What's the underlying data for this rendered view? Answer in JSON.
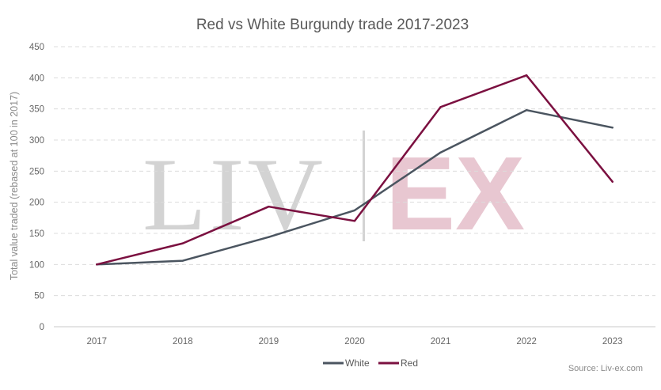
{
  "chart_data": {
    "type": "line",
    "title": "Red vs White Burgundy trade 2017-2023",
    "xlabel": "",
    "ylabel": "Total value traded (rebased at 100 in 2017)",
    "categories": [
      "2017",
      "2018",
      "2019",
      "2020",
      "2021",
      "2022",
      "2023"
    ],
    "ylim": [
      0,
      450
    ],
    "yticks": [
      0,
      50,
      100,
      150,
      200,
      250,
      300,
      350,
      400,
      450
    ],
    "grid": true,
    "legend_position": "bottom-center",
    "series": [
      {
        "name": "White",
        "color": "#4b5560",
        "values": [
          100,
          106,
          144,
          187,
          280,
          348,
          320
        ]
      },
      {
        "name": "Red",
        "color": "#7b1040",
        "values": [
          100,
          134,
          193,
          170,
          353,
          404,
          233
        ]
      }
    ],
    "source": "Source: Liv-ex.com",
    "watermark": {
      "left": "LIV",
      "right": "EX"
    }
  }
}
